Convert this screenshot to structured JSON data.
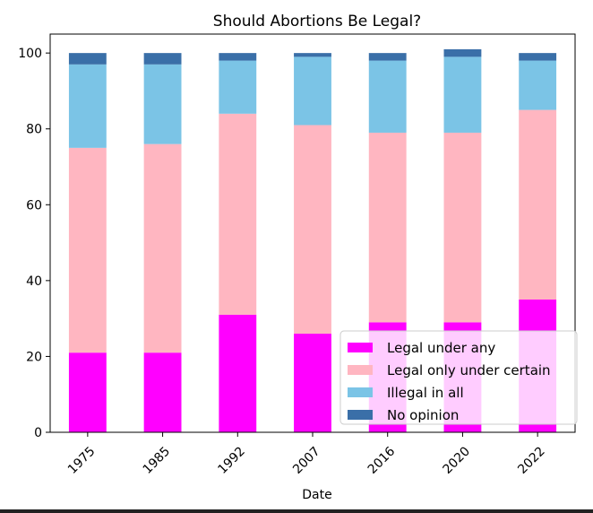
{
  "chart_data": {
    "type": "bar",
    "stacked": true,
    "title": "Should Abortions Be Legal?",
    "xlabel": "Date",
    "ylabel": "",
    "categories": [
      "1975",
      "1985",
      "1992",
      "2007",
      "2016",
      "2020",
      "2022"
    ],
    "ylim": [
      0,
      105
    ],
    "yticks": [
      0,
      20,
      40,
      60,
      80,
      100
    ],
    "grid": false,
    "legend": "lower-right",
    "series": [
      {
        "name": "Legal under any",
        "color": "#ff00ff",
        "values": [
          21,
          21,
          31,
          26,
          29,
          29,
          35
        ]
      },
      {
        "name": "Legal only under certain",
        "color": "#ffb6c1",
        "values": [
          54,
          55,
          53,
          55,
          50,
          50,
          50
        ]
      },
      {
        "name": "Illegal in all",
        "color": "#7bc4e6",
        "values": [
          22,
          21,
          14,
          18,
          19,
          20,
          13
        ]
      },
      {
        "name": "No opinion",
        "color": "#3a6fa8",
        "values": [
          3,
          3,
          2,
          1,
          2,
          2,
          2
        ]
      }
    ]
  }
}
